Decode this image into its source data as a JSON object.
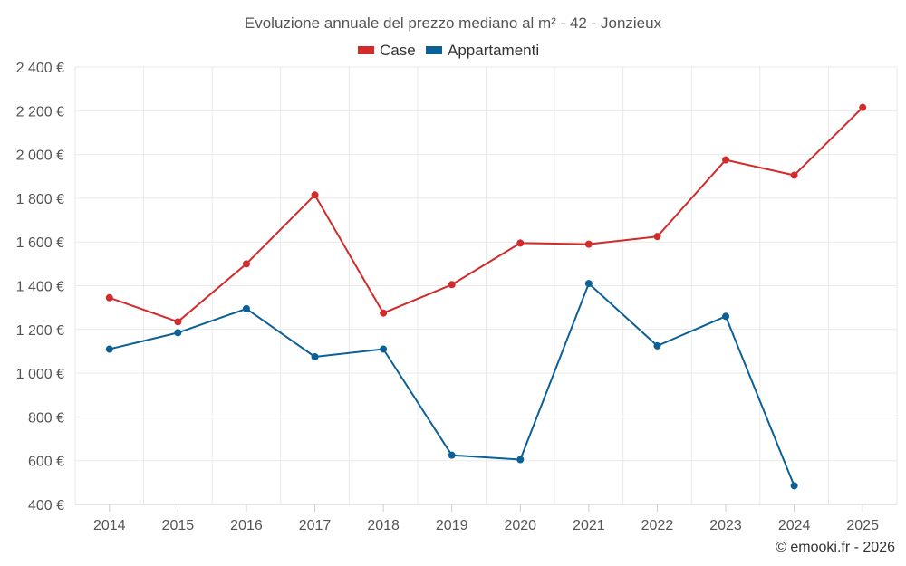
{
  "chart_data": {
    "type": "line",
    "title": "Evoluzione annuale del prezzo mediano al m² - 42 - Jonzieux",
    "categories": [
      "2014",
      "2015",
      "2016",
      "2017",
      "2018",
      "2019",
      "2020",
      "2021",
      "2022",
      "2023",
      "2024",
      "2025"
    ],
    "y_ticks": [
      "400 €",
      "600 €",
      "800 €",
      "1 000 €",
      "1 200 €",
      "1 400 €",
      "1 600 €",
      "1 800 €",
      "2 000 €",
      "2 200 €",
      "2 400 €"
    ],
    "ylim": [
      400,
      2400
    ],
    "series": [
      {
        "name": "Case",
        "color": "#d22b2b",
        "values": [
          1345,
          1235,
          1500,
          1815,
          1275,
          1405,
          1595,
          1590,
          1625,
          1975,
          1905,
          2215
        ]
      },
      {
        "name": "Appartamenti",
        "color": "#0b6196",
        "values": [
          1110,
          1185,
          1295,
          1075,
          1110,
          625,
          605,
          1410,
          1125,
          1260,
          485,
          null
        ]
      }
    ],
    "legend_position": "top-center",
    "grid": true
  },
  "credit": "© emooki.fr - 2026"
}
